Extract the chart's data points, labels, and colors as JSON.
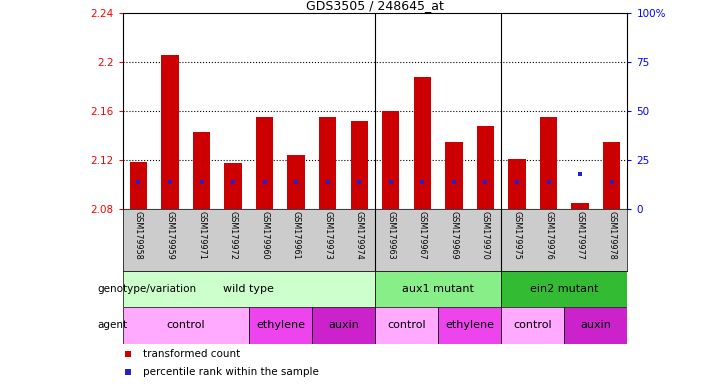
{
  "title": "GDS3505 / 248645_at",
  "samples": [
    "GSM179958",
    "GSM179959",
    "GSM179971",
    "GSM179972",
    "GSM179960",
    "GSM179961",
    "GSM179973",
    "GSM179974",
    "GSM179963",
    "GSM179967",
    "GSM179969",
    "GSM179970",
    "GSM179975",
    "GSM179976",
    "GSM179977",
    "GSM179978"
  ],
  "red_values": [
    2.119,
    2.206,
    2.143,
    2.118,
    2.155,
    2.124,
    2.155,
    2.152,
    2.16,
    2.188,
    2.135,
    2.148,
    2.121,
    2.155,
    2.085,
    2.135
  ],
  "blue_pct": [
    14,
    14,
    14,
    14,
    14,
    14,
    14,
    14,
    14,
    14,
    14,
    14,
    14,
    14,
    18,
    14
  ],
  "y_min": 2.08,
  "y_max": 2.24,
  "y_ticks_left": [
    2.08,
    2.12,
    2.16,
    2.2,
    2.24
  ],
  "y_ticks_right": [
    0,
    25,
    50,
    75,
    100
  ],
  "bar_color": "#cc0000",
  "blue_color": "#2222cc",
  "groups": [
    {
      "label": "wild type",
      "start": 0,
      "end": 8,
      "color": "#ccffcc"
    },
    {
      "label": "aux1 mutant",
      "start": 8,
      "end": 12,
      "color": "#88ee88"
    },
    {
      "label": "ein2 mutant",
      "start": 12,
      "end": 16,
      "color": "#33bb33"
    }
  ],
  "agents": [
    {
      "label": "control",
      "start": 0,
      "end": 4,
      "color": "#ffaaff"
    },
    {
      "label": "ethylene",
      "start": 4,
      "end": 6,
      "color": "#ee44ee"
    },
    {
      "label": "auxin",
      "start": 6,
      "end": 8,
      "color": "#cc22cc"
    },
    {
      "label": "control",
      "start": 8,
      "end": 10,
      "color": "#ffaaff"
    },
    {
      "label": "ethylene",
      "start": 10,
      "end": 12,
      "color": "#ee44ee"
    },
    {
      "label": "control",
      "start": 12,
      "end": 14,
      "color": "#ffaaff"
    },
    {
      "label": "auxin",
      "start": 14,
      "end": 16,
      "color": "#cc22cc"
    }
  ],
  "legend_red": "transformed count",
  "legend_blue": "percentile rank within the sample",
  "group_row_label": "genotype/variation",
  "agent_row_label": "agent",
  "grid_lines": [
    2.12,
    2.16,
    2.2
  ],
  "group_separators": [
    7.5,
    11.5
  ],
  "sample_bg_color": "#cccccc"
}
